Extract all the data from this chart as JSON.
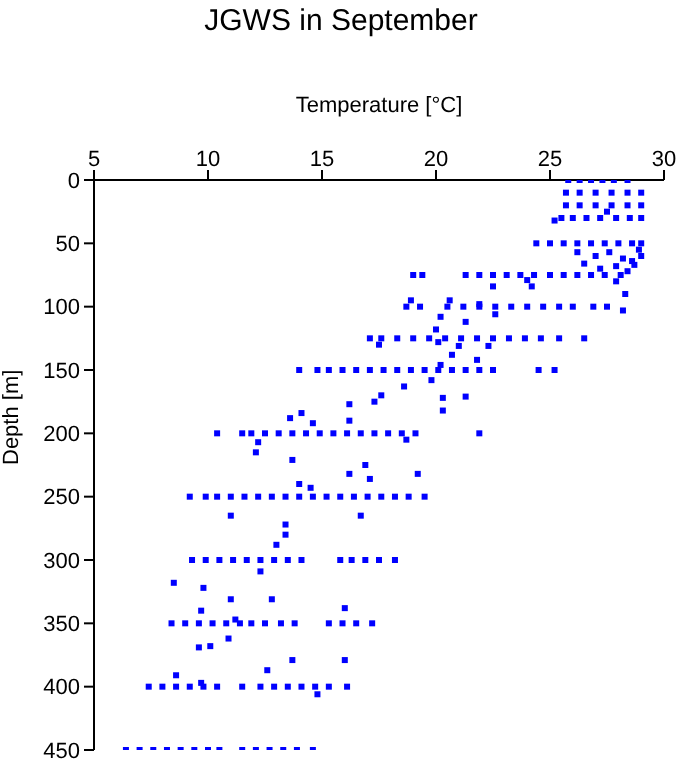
{
  "chart_data": {
    "type": "scatter",
    "title": "JGWS in September",
    "xlabel": "Temperature [°C]",
    "ylabel": "Depth [m]",
    "xlim": [
      5,
      30
    ],
    "xticks": [
      5,
      10,
      15,
      20,
      25,
      30
    ],
    "ylim": [
      450,
      0
    ],
    "yticks": [
      0,
      50,
      100,
      150,
      200,
      250,
      300,
      350,
      400,
      450
    ],
    "grid": false,
    "legend": false,
    "marker": "square",
    "series": [
      {
        "color": "#0000ff",
        "x": [
          25.8,
          26.3,
          26.8,
          27.3,
          27.8,
          28.4,
          25.7,
          26.3,
          27,
          27.7,
          28.4,
          29,
          25.7,
          26.3,
          27,
          27.7,
          28.4,
          29,
          27.5,
          25.5,
          26,
          26.6,
          27.2,
          27.9,
          28.5,
          29,
          25.2,
          24.4,
          25,
          25.6,
          26.2,
          26.8,
          27.4,
          28,
          28.6,
          29,
          26.2,
          27,
          27.6,
          28.2,
          28.6,
          27.9,
          27.2,
          28.4,
          26.5,
          28.9,
          29,
          28.7,
          19,
          19.4,
          21.3,
          21.9,
          22.5,
          23.1,
          23.7,
          24.3,
          25,
          25.6,
          26.2,
          26.8,
          27.4,
          28.1,
          22.5,
          24.2,
          27.9,
          28.3,
          24,
          18.7,
          19.3,
          20.5,
          21.2,
          21.9,
          22.6,
          23.3,
          24,
          24.7,
          25.4,
          26,
          26.9,
          27.5,
          18.9,
          20.6,
          21.9,
          20.2,
          21.3,
          20,
          28.2,
          22.6,
          17.1,
          17.6,
          18.3,
          19,
          19.7,
          20.4,
          21.1,
          21.8,
          22.5,
          23.2,
          23.9,
          24.6,
          25.4,
          26.5,
          17.5,
          20.1,
          21,
          20.7,
          22.3,
          21.8,
          20.2,
          14,
          14.8,
          15.3,
          15.9,
          16.5,
          17.1,
          17.7,
          18.3,
          18.9,
          19.5,
          20.1,
          20.7,
          21.3,
          21.9,
          22.5,
          24.5,
          25.2,
          19.8,
          17.3,
          18.6,
          20.3,
          16.2,
          17.6,
          21.3,
          20.3,
          16.2,
          14.1,
          13.6,
          14.6,
          10.4,
          11.5,
          11.9,
          12.5,
          13.1,
          13.7,
          14.3,
          14.9,
          15.5,
          16.1,
          16.7,
          17.3,
          17.9,
          18.5,
          19.1,
          21.9,
          12.2,
          12.1,
          13.7,
          16.9,
          17.1,
          19.2,
          16.2,
          14,
          14.5,
          18.7,
          9.2,
          9.9,
          10.4,
          11,
          11.6,
          12.2,
          12.8,
          13.4,
          14,
          14.6,
          15.2,
          15.8,
          16.4,
          17,
          17.6,
          18.2,
          18.8,
          19.5,
          11,
          16.7,
          13.4,
          13.4,
          13,
          9.3,
          9.9,
          10.5,
          11.1,
          11.7,
          12.3,
          12.9,
          13.5,
          14.1,
          15.8,
          16.3,
          16.9,
          17.5,
          18.2,
          8.5,
          9.8,
          11,
          12.8,
          12.3,
          9.7,
          16,
          11.2,
          8.4,
          9,
          9.6,
          10.2,
          10.8,
          11.4,
          11.9,
          12.5,
          13.2,
          13.8,
          15.3,
          15.9,
          16.5,
          17.2,
          9.6,
          10.1,
          10.9,
          12.6,
          13.7,
          16,
          8.6,
          9.7,
          7.4,
          8,
          8.6,
          9.2,
          9.8,
          10.4,
          11.5,
          12.3,
          12.9,
          13.5,
          14.1,
          14.7,
          15.3,
          16.1,
          14.8,
          6.4,
          7,
          7.6,
          8.2,
          8.8,
          9.4,
          10,
          10.5,
          11.5,
          12.1,
          12.7,
          13.3,
          13.9,
          14.6
        ],
        "values": [
          0,
          0,
          0,
          0,
          0,
          0,
          10,
          10,
          10,
          10,
          10,
          10,
          20,
          20,
          20,
          20,
          20,
          20,
          25,
          30,
          30,
          30,
          30,
          30,
          30,
          30,
          32,
          50,
          50,
          50,
          50,
          50,
          50,
          50,
          50,
          50,
          57,
          60,
          57,
          62,
          64,
          68,
          70,
          72,
          66,
          55,
          60,
          67,
          75,
          75,
          75,
          75,
          75,
          75,
          75,
          75,
          75,
          75,
          75,
          75,
          75,
          75,
          84,
          84,
          80,
          90,
          79,
          100,
          100,
          100,
          100,
          100,
          100,
          100,
          100,
          100,
          100,
          100,
          100,
          100,
          95,
          95,
          98,
          108,
          112,
          118,
          103,
          106,
          125,
          125,
          125,
          125,
          125,
          125,
          125,
          125,
          125,
          125,
          125,
          125,
          125,
          125,
          130,
          128,
          131,
          138,
          131,
          142,
          146,
          150,
          150,
          150,
          150,
          150,
          150,
          150,
          150,
          150,
          150,
          150,
          150,
          150,
          150,
          150,
          150,
          150,
          158,
          175,
          163,
          172,
          177,
          170,
          171,
          182,
          190,
          184,
          188,
          192,
          200,
          200,
          200,
          200,
          200,
          200,
          200,
          200,
          200,
          200,
          200,
          200,
          200,
          200,
          200,
          200,
          207,
          215,
          221,
          225,
          236,
          232,
          232,
          240,
          243,
          205,
          250,
          250,
          250,
          250,
          250,
          250,
          250,
          250,
          250,
          250,
          250,
          250,
          250,
          250,
          250,
          250,
          250,
          250,
          265,
          265,
          272,
          280,
          288,
          300,
          300,
          300,
          300,
          300,
          300,
          300,
          300,
          300,
          300,
          300,
          300,
          300,
          300,
          318,
          322,
          331,
          331,
          309,
          340,
          338,
          347,
          350,
          350,
          350,
          350,
          350,
          350,
          350,
          350,
          350,
          350,
          350,
          350,
          350,
          350,
          369,
          368,
          362,
          387,
          379,
          379,
          391,
          397,
          400,
          400,
          400,
          400,
          400,
          400,
          400,
          400,
          400,
          400,
          400,
          400,
          400,
          400,
          406,
          450,
          450,
          450,
          450,
          450,
          450,
          450,
          450,
          450,
          450,
          450,
          450,
          450,
          450
        ]
      }
    ]
  }
}
